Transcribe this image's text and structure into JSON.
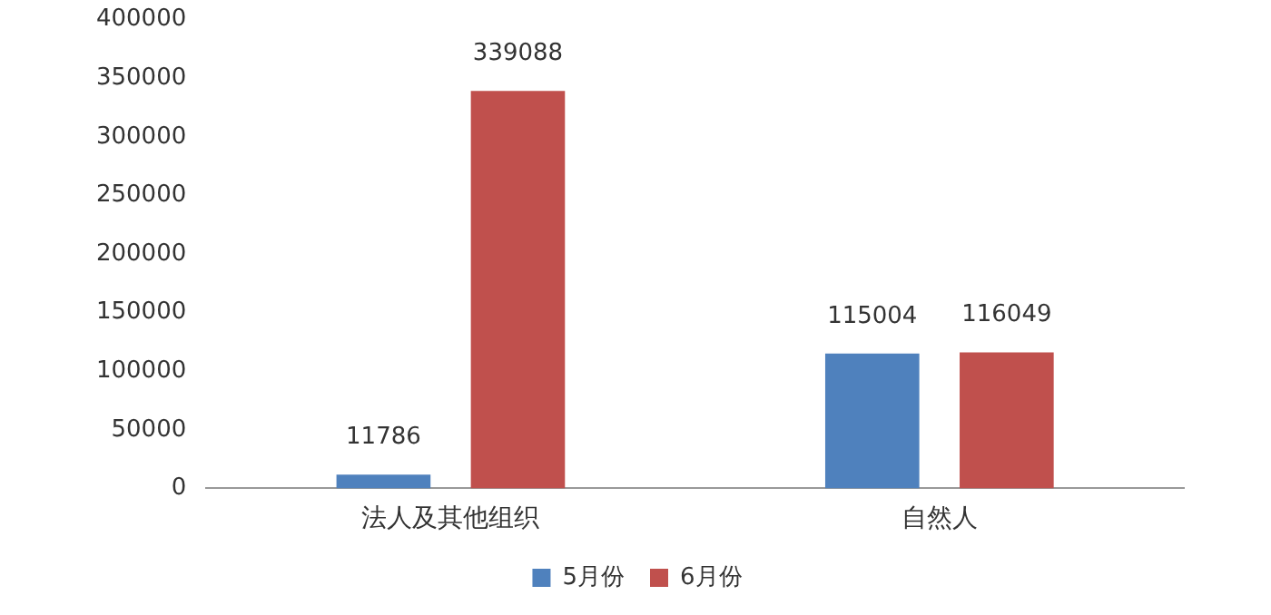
{
  "chart_data": {
    "type": "bar",
    "categories": [
      "法人及其他组织",
      "自然人"
    ],
    "series": [
      {
        "name": "5月份",
        "color": "#4f81bd",
        "values": [
          11786,
          115004
        ]
      },
      {
        "name": "6月份",
        "color": "#c0504d",
        "values": [
          339088,
          116049
        ]
      }
    ],
    "ylim": [
      0,
      400000
    ],
    "yticks": [
      0,
      50000,
      100000,
      150000,
      200000,
      250000,
      300000,
      350000,
      400000
    ],
    "grid": false,
    "legend": "bottom",
    "data_labels": true
  }
}
